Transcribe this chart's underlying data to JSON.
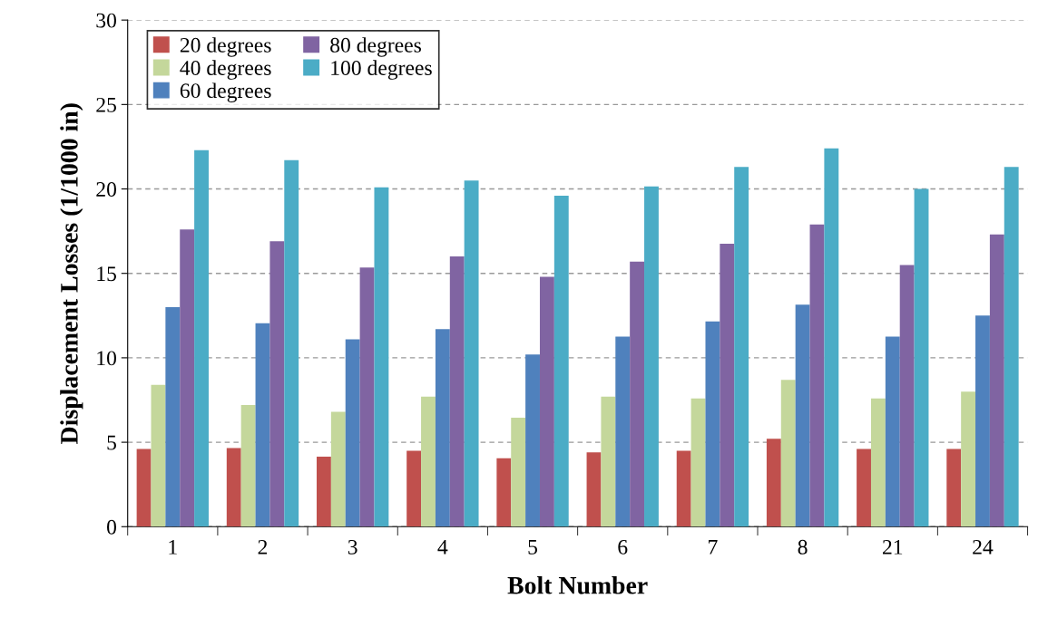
{
  "chart_data": {
    "type": "bar",
    "xlabel": "Bolt Number",
    "ylabel": "Displacement Losses (1/1000 in)",
    "categories": [
      "1",
      "2",
      "3",
      "4",
      "5",
      "6",
      "7",
      "8",
      "21",
      "24"
    ],
    "series": [
      {
        "name": "20 degrees",
        "color": "#c0504d",
        "values": [
          4.6,
          4.65,
          4.15,
          4.5,
          4.05,
          4.4,
          4.5,
          5.2,
          4.6,
          4.6
        ]
      },
      {
        "name": "40 degrees",
        "color": "#c4d79b",
        "values": [
          8.4,
          7.2,
          6.8,
          7.7,
          6.45,
          7.7,
          7.6,
          8.7,
          7.6,
          8.0
        ]
      },
      {
        "name": "60 degrees",
        "color": "#4f81bd",
        "values": [
          13.0,
          12.05,
          11.1,
          11.7,
          10.2,
          11.25,
          12.15,
          13.15,
          11.25,
          12.5
        ]
      },
      {
        "name": "80 degrees",
        "color": "#8064a2",
        "values": [
          17.6,
          16.9,
          15.35,
          16.0,
          14.8,
          15.7,
          16.75,
          17.9,
          15.5,
          17.3
        ]
      },
      {
        "name": "100 degrees",
        "color": "#4bacc6",
        "values": [
          22.3,
          21.7,
          20.1,
          20.5,
          19.6,
          20.15,
          21.3,
          22.4,
          20.0,
          21.3
        ]
      }
    ],
    "ylim": [
      0,
      30
    ],
    "yticks": [
      0,
      5,
      10,
      15,
      20,
      25,
      30
    ],
    "grid": "y",
    "legend": "top left"
  }
}
